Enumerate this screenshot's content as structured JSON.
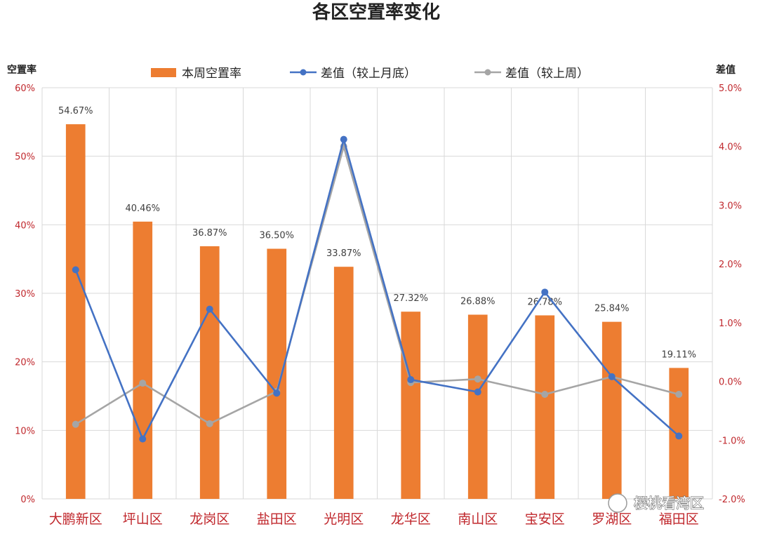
{
  "chart_data": {
    "type": "bar",
    "title": "各区空置率变化",
    "categories": [
      "大鹏新区",
      "坪山区",
      "龙岗区",
      "盐田区",
      "光明区",
      "龙华区",
      "南山区",
      "宝安区",
      "罗湖区",
      "福田区"
    ],
    "y_left": {
      "label": "空置率",
      "range": [
        0,
        60
      ],
      "ticks": [
        "0%",
        "10%",
        "20%",
        "30%",
        "40%",
        "50%",
        "60%"
      ]
    },
    "y_right": {
      "label": "差值",
      "range": [
        -2.0,
        5.0
      ],
      "ticks": [
        "-2.0%",
        "-1.0%",
        "0.0%",
        "1.0%",
        "2.0%",
        "3.0%",
        "4.0%",
        "5.0%"
      ]
    },
    "series": [
      {
        "name": "本周空置率",
        "type": "bar",
        "axis": "left",
        "color": "#ed7d31",
        "values": [
          54.67,
          40.46,
          36.87,
          36.5,
          33.87,
          27.32,
          26.88,
          26.78,
          25.84,
          19.11
        ],
        "labels": [
          "54.67%",
          "40.46%",
          "36.87%",
          "36.50%",
          "33.87%",
          "27.32%",
          "26.88%",
          "26.78%",
          "25.84%",
          "19.11%"
        ]
      },
      {
        "name": "差值（较上月底）",
        "type": "line",
        "axis": "right",
        "color": "#4472c4",
        "values": [
          1.9,
          -0.98,
          1.23,
          -0.2,
          4.12,
          0.03,
          -0.18,
          1.52,
          0.08,
          -0.93
        ]
      },
      {
        "name": "差值（较上周）",
        "type": "line",
        "axis": "right",
        "color": "#a5a5a5",
        "values": [
          -0.73,
          -0.03,
          -0.72,
          -0.17,
          4.0,
          -0.02,
          0.04,
          -0.22,
          0.08,
          -0.22
        ]
      }
    ],
    "grid": true,
    "legend_position": "top"
  },
  "watermark": "樱桃看湾区"
}
